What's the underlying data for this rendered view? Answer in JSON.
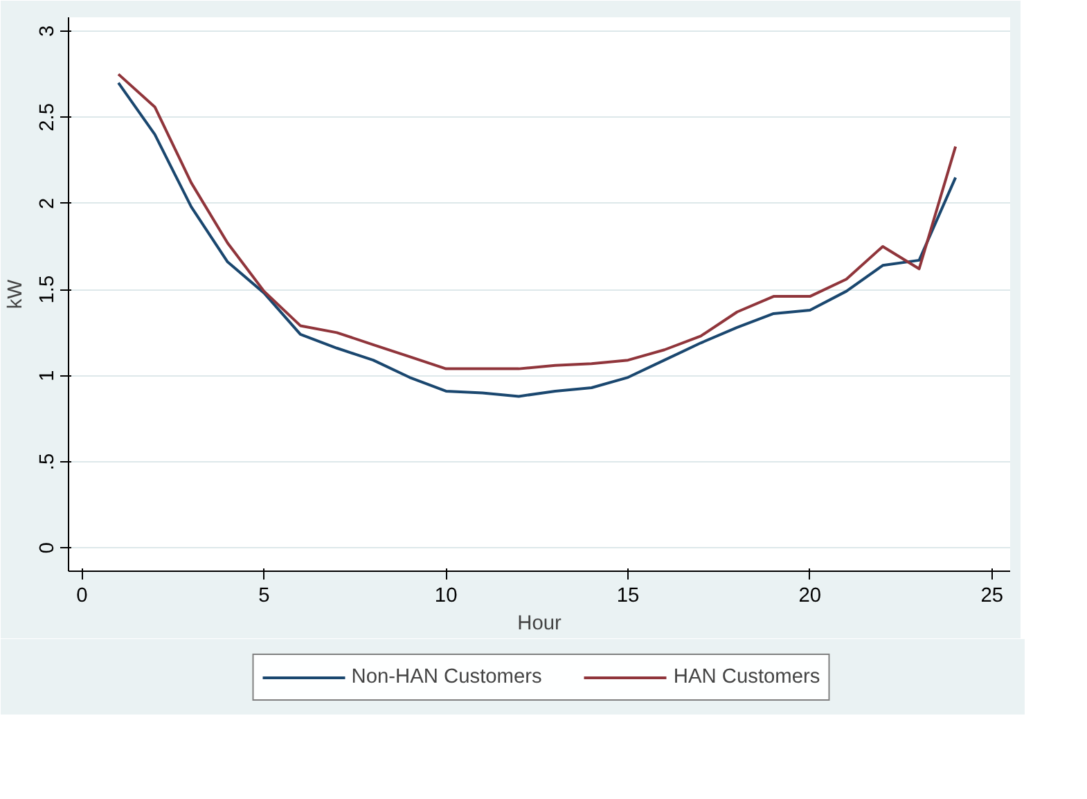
{
  "chart_data": {
    "type": "line",
    "xlabel": "Hour",
    "ylabel": "kW",
    "x": [
      1,
      2,
      3,
      4,
      5,
      6,
      7,
      8,
      9,
      10,
      11,
      12,
      13,
      14,
      15,
      16,
      17,
      18,
      19,
      20,
      21,
      22,
      23,
      24
    ],
    "series": [
      {
        "name": "Non-HAN Customers",
        "color": "#1a476f",
        "values": [
          2.7,
          2.4,
          1.98,
          1.66,
          1.48,
          1.24,
          1.16,
          1.09,
          0.99,
          0.91,
          0.9,
          0.88,
          0.91,
          0.93,
          0.99,
          1.09,
          1.19,
          1.28,
          1.36,
          1.38,
          1.49,
          1.64,
          1.67,
          2.15
        ]
      },
      {
        "name": "HAN Customers",
        "color": "#90353b",
        "values": [
          2.75,
          2.56,
          2.12,
          1.77,
          1.49,
          1.29,
          1.25,
          1.18,
          1.11,
          1.04,
          1.04,
          1.04,
          1.06,
          1.07,
          1.09,
          1.15,
          1.23,
          1.37,
          1.46,
          1.46,
          1.56,
          1.75,
          1.62,
          2.33
        ]
      }
    ],
    "xlim": [
      -0.37,
      25.5
    ],
    "ylim": [
      -0.135,
      3.08
    ],
    "xticks": [
      0,
      5,
      10,
      15,
      20,
      25
    ],
    "yticks": [
      0,
      {
        "value": 0.5,
        "label": ".5"
      },
      1,
      1.5,
      2,
      2.5,
      3
    ],
    "grid": "y",
    "legend": "bottom",
    "marker": "none",
    "line_style": "solid"
  }
}
